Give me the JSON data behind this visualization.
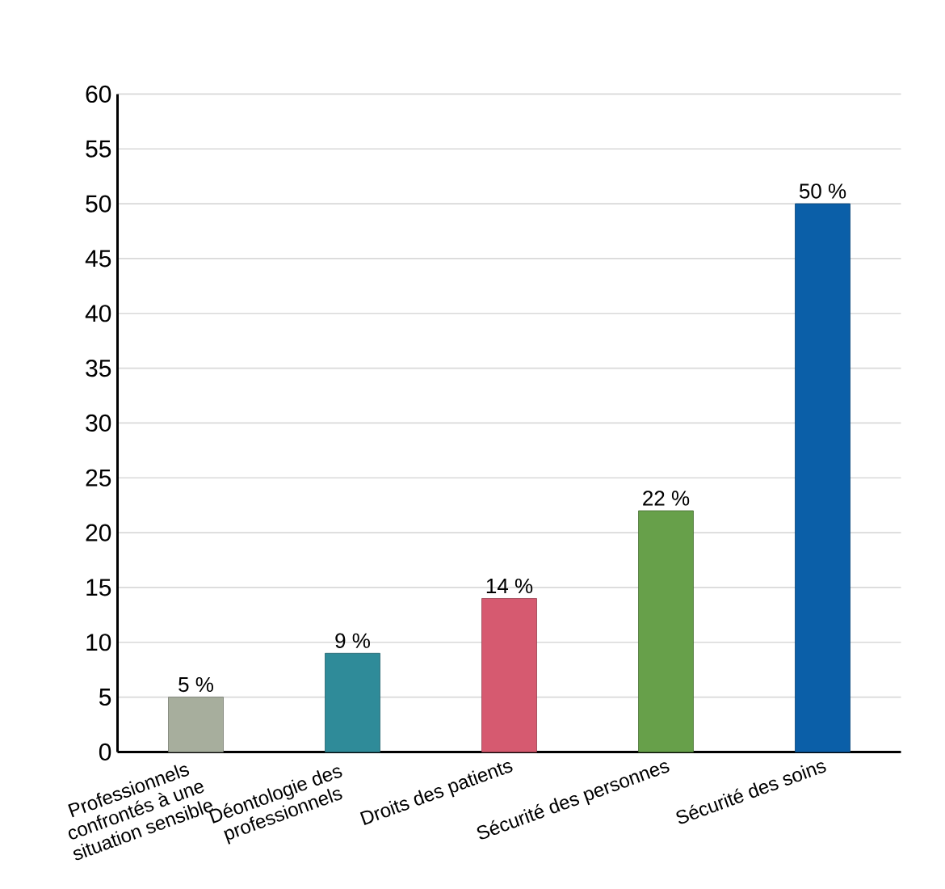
{
  "chart_data": {
    "type": "bar",
    "categories": [
      "Professionnels confrontés à une situation sensible",
      "Déontologie des professionnels",
      "Droits des patients",
      "Sécurité des personnes",
      "Sécurité des soins"
    ],
    "values": [
      5,
      9,
      14,
      22,
      50
    ],
    "colors": [
      "#a7ae9d",
      "#2f8b99",
      "#d65a70",
      "#67a04a",
      "#0b5fa8"
    ],
    "value_labels": [
      "5 %",
      "9 %",
      "14 %",
      "22 %",
      "50 %"
    ],
    "ylim": [
      0,
      60
    ],
    "yticks": [
      0,
      5,
      10,
      15,
      20,
      25,
      30,
      35,
      40,
      45,
      50,
      55,
      60
    ],
    "grid": "y"
  }
}
